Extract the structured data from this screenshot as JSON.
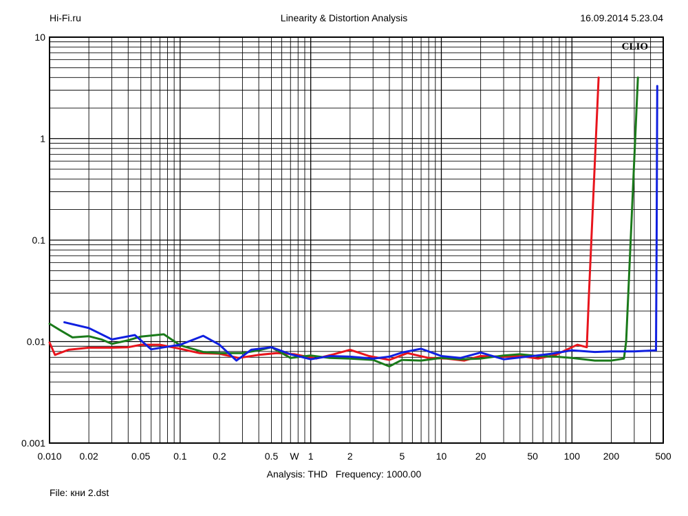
{
  "header": {
    "site": "Hi-Fi.ru",
    "title": "Linearity & Distortion Analysis",
    "timestamp": "16.09.2014 5.23.04"
  },
  "logo": "CLIO",
  "footer": {
    "analysis": "Analysis: THD",
    "frequency": "Frequency: 1000.00",
    "file": "File: кни 2.dst"
  },
  "chart_data": {
    "type": "line",
    "title": "Linearity & Distortion Analysis",
    "xlabel": "",
    "ylabel": "",
    "x_scale": "log",
    "y_scale": "log",
    "xlim": [
      0.01,
      500
    ],
    "ylim": [
      0.001,
      10
    ],
    "grid": true,
    "x_ticks": [
      {
        "value": 0.01,
        "label": "0.010"
      },
      {
        "value": 0.02,
        "label": "0.02"
      },
      {
        "value": 0.05,
        "label": "0.05"
      },
      {
        "value": 0.1,
        "label": "0.1"
      },
      {
        "value": 0.2,
        "label": "0.2"
      },
      {
        "value": 0.5,
        "label": "0.5"
      },
      {
        "value": 1,
        "label": "1"
      },
      {
        "value": 2,
        "label": "2"
      },
      {
        "value": 5,
        "label": "5"
      },
      {
        "value": 10,
        "label": "10"
      },
      {
        "value": 20,
        "label": "20"
      },
      {
        "value": 50,
        "label": "50"
      },
      {
        "value": 100,
        "label": "100"
      },
      {
        "value": 200,
        "label": "200"
      },
      {
        "value": 500,
        "label": "500"
      }
    ],
    "x_unit_label": {
      "value": 0.75,
      "label": "W"
    },
    "y_ticks": [
      {
        "value": 10,
        "label": "10"
      },
      {
        "value": 1,
        "label": "1"
      },
      {
        "value": 0.1,
        "label": "0.1"
      },
      {
        "value": 0.01,
        "label": "0.01"
      },
      {
        "value": 0.001,
        "label": "0.001"
      }
    ],
    "series": [
      {
        "color": "#e8141c",
        "x": [
          0.01,
          0.011,
          0.014,
          0.02,
          0.03,
          0.04,
          0.05,
          0.07,
          0.1,
          0.14,
          0.2,
          0.28,
          0.4,
          0.55,
          0.75,
          1.1,
          1.5,
          2,
          2.8,
          4,
          5.5,
          8,
          11,
          15,
          20,
          30,
          40,
          55,
          75,
          100,
          110,
          130,
          135,
          160
        ],
        "y": [
          0.0098,
          0.0074,
          0.0083,
          0.0087,
          0.0087,
          0.0088,
          0.0093,
          0.0093,
          0.0085,
          0.0077,
          0.0076,
          0.0069,
          0.0074,
          0.0077,
          0.0075,
          0.0068,
          0.0075,
          0.0083,
          0.0072,
          0.0066,
          0.0077,
          0.0069,
          0.0068,
          0.0065,
          0.0072,
          0.0071,
          0.0072,
          0.0068,
          0.0074,
          0.0088,
          0.0093,
          0.0088,
          0.03,
          4.0
        ]
      },
      {
        "color": "#1a7a1a",
        "x": [
          0.01,
          0.012,
          0.015,
          0.02,
          0.025,
          0.03,
          0.04,
          0.05,
          0.075,
          0.1,
          0.15,
          0.2,
          0.3,
          0.4,
          0.5,
          0.7,
          1,
          1.4,
          2,
          3,
          4,
          5,
          7,
          10,
          14,
          20,
          30,
          40,
          55,
          75,
          100,
          150,
          200,
          250,
          260,
          320
        ],
        "y": [
          0.015,
          0.013,
          0.011,
          0.0113,
          0.0105,
          0.0095,
          0.0103,
          0.0112,
          0.0118,
          0.0092,
          0.0079,
          0.0077,
          0.0077,
          0.0082,
          0.0088,
          0.0069,
          0.0073,
          0.0069,
          0.0068,
          0.0066,
          0.0057,
          0.0066,
          0.0065,
          0.0069,
          0.0067,
          0.0068,
          0.0073,
          0.0075,
          0.0072,
          0.0071,
          0.0069,
          0.0065,
          0.0065,
          0.0068,
          0.01,
          4.0
        ]
      },
      {
        "color": "#1020e0",
        "x": [
          0.013,
          0.02,
          0.03,
          0.045,
          0.06,
          0.1,
          0.15,
          0.2,
          0.27,
          0.35,
          0.5,
          0.7,
          1,
          1.4,
          2,
          3,
          4,
          5,
          7,
          10,
          14,
          20,
          30,
          50,
          70,
          100,
          150,
          200,
          300,
          440,
          445,
          450
        ],
        "y": [
          0.0155,
          0.0136,
          0.0105,
          0.0116,
          0.0084,
          0.0093,
          0.0114,
          0.0093,
          0.0065,
          0.0083,
          0.0088,
          0.0075,
          0.0067,
          0.0072,
          0.0071,
          0.0068,
          0.0071,
          0.0078,
          0.0085,
          0.0072,
          0.0069,
          0.0078,
          0.0067,
          0.0072,
          0.0076,
          0.0082,
          0.0079,
          0.008,
          0.008,
          0.0082,
          0.1,
          3.3
        ]
      }
    ]
  }
}
